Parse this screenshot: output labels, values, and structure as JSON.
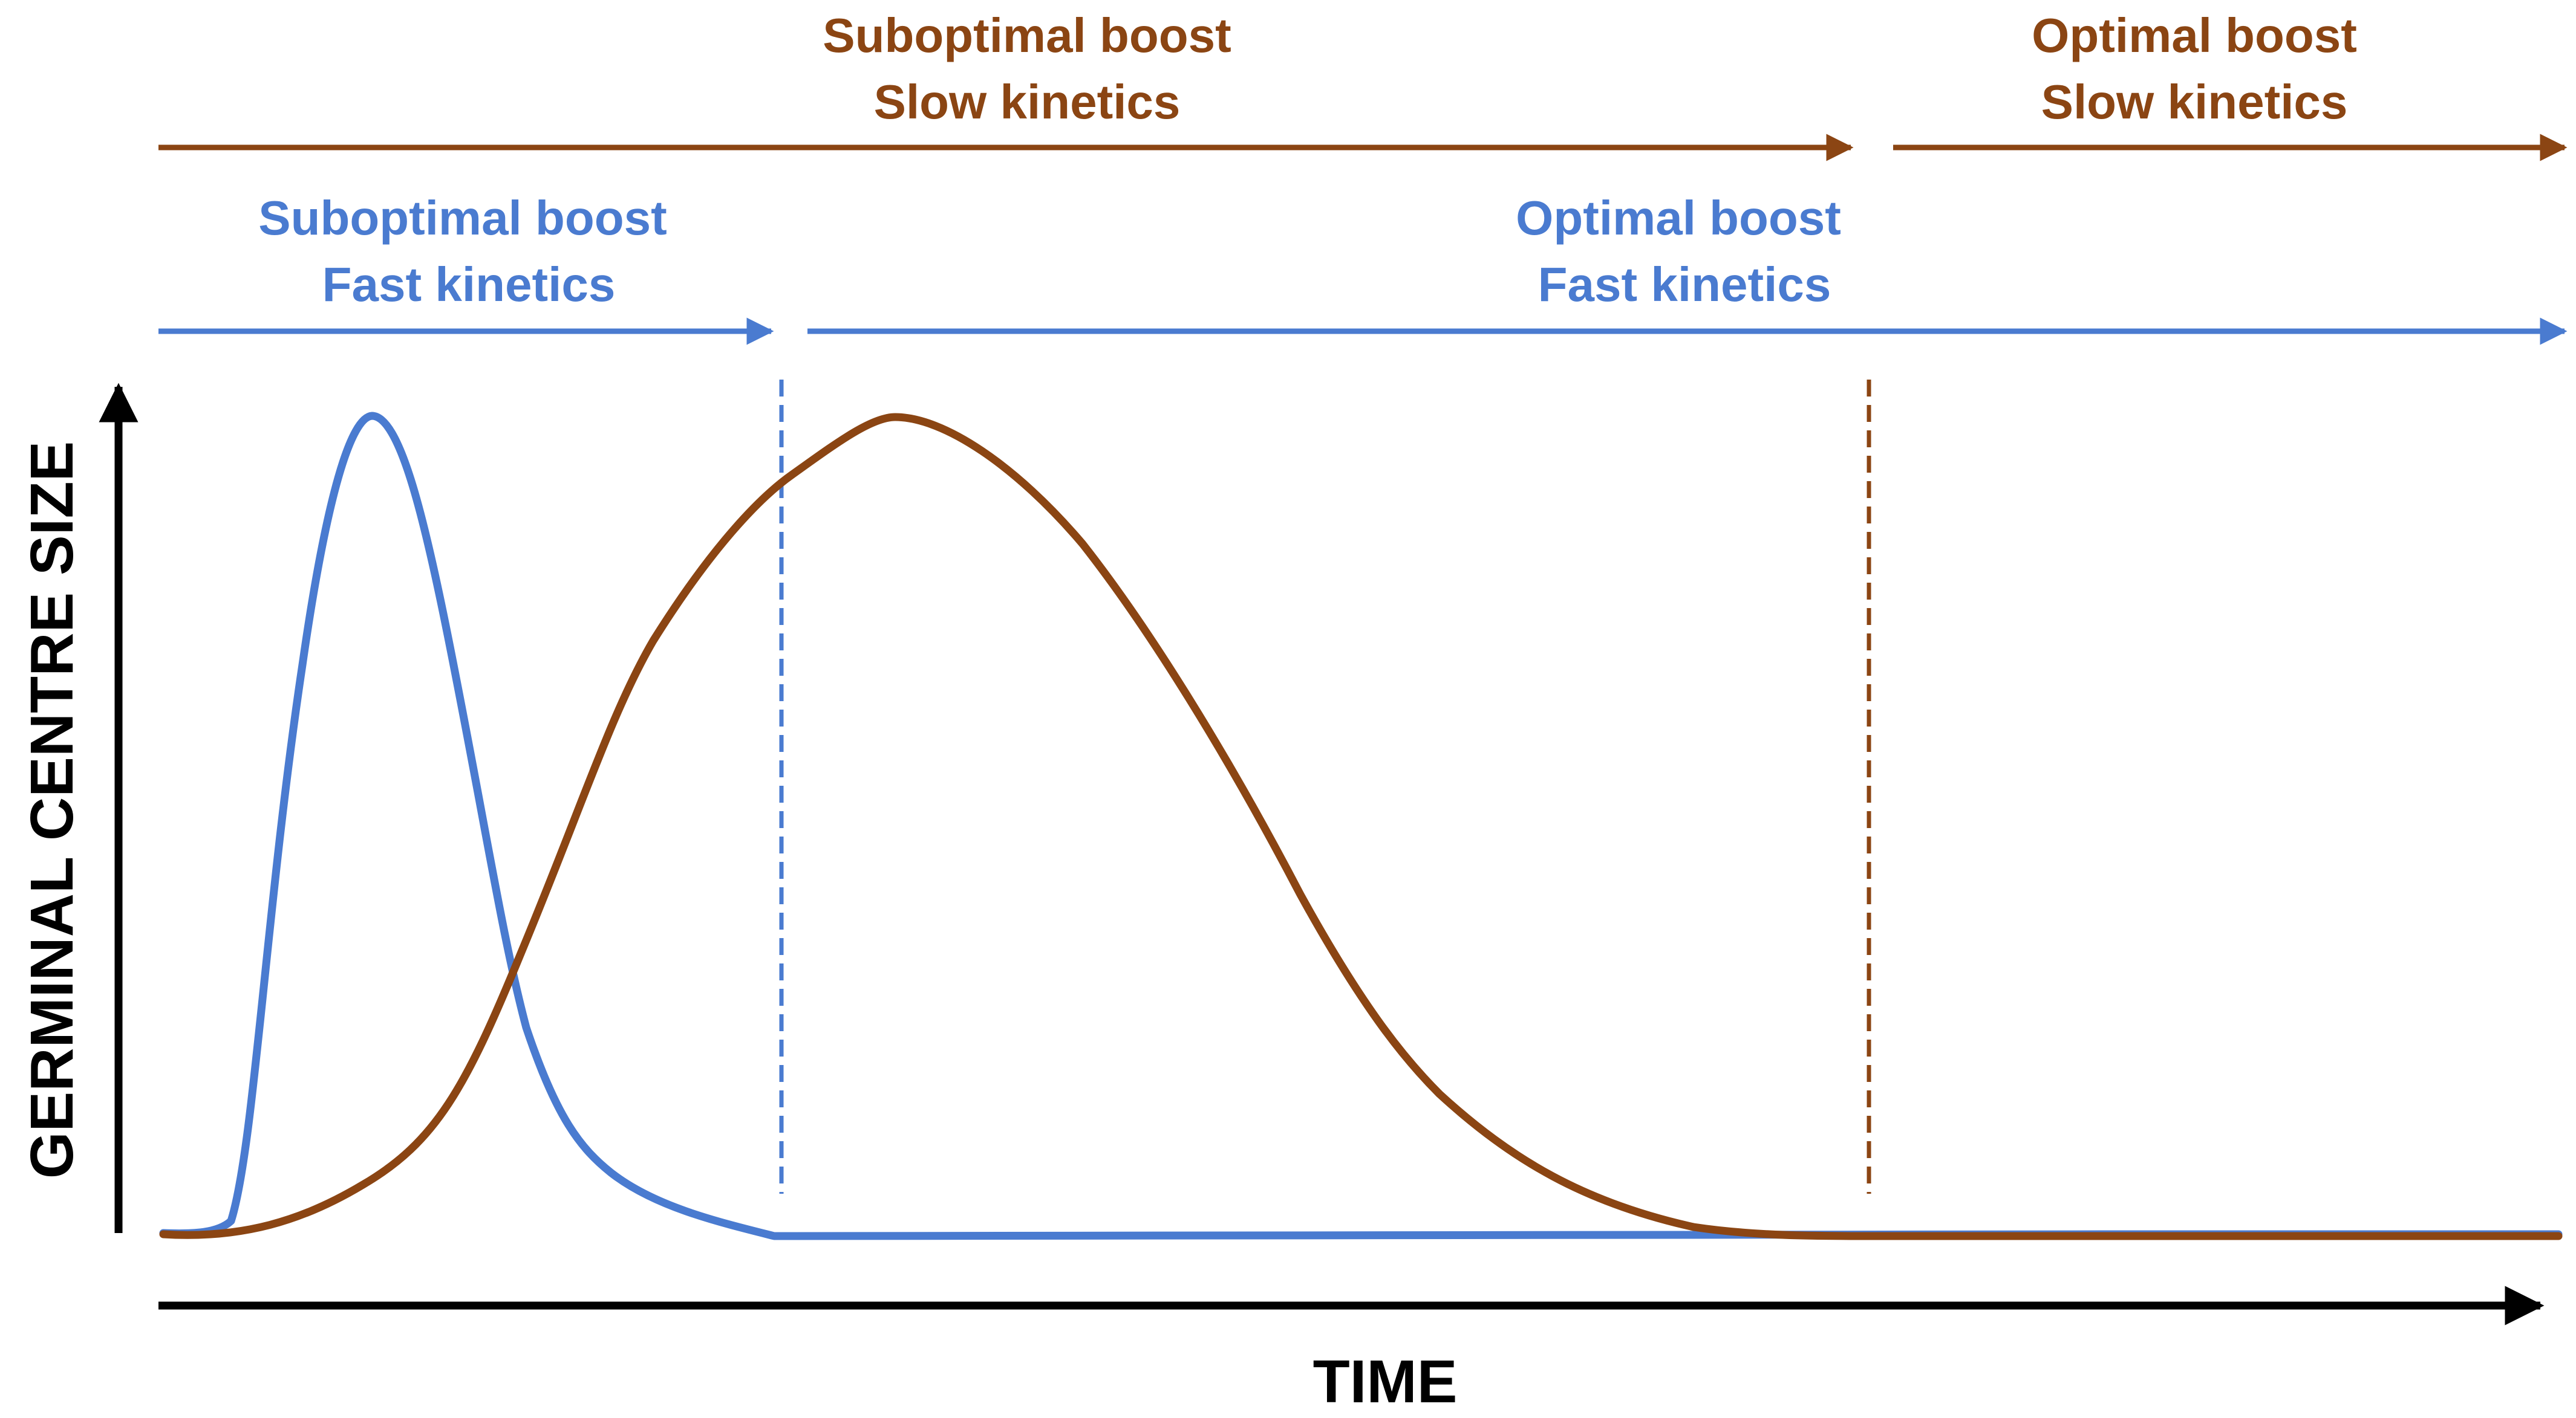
{
  "colors": {
    "slow": "#8B4513",
    "fast": "#4a7bd0",
    "axis": "#000000"
  },
  "labels": {
    "slow_suboptimal": {
      "line1": "Suboptimal boost",
      "line2": "Slow kinetics"
    },
    "slow_optimal": {
      "line1": "Optimal boost",
      "line2": "Slow kinetics"
    },
    "fast_suboptimal": {
      "line1": "Suboptimal boost",
      "line2": "Fast kinetics"
    },
    "fast_optimal": {
      "line1": "Optimal boost",
      "line2": "Fast kinetics"
    }
  },
  "axes": {
    "x_label": "TIME",
    "y_label": "GERMINAL CENTRE SIZE"
  },
  "curves": [
    {
      "name": "fast-kinetics-curve",
      "color_key": "fast"
    },
    {
      "name": "slow-kinetics-curve",
      "color_key": "slow"
    }
  ]
}
